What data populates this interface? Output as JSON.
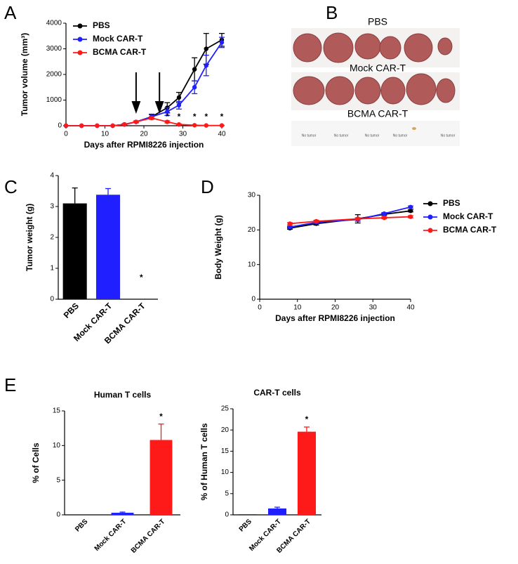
{
  "panel_labels": [
    "A",
    "B",
    "C",
    "D",
    "E"
  ],
  "photo": {
    "rows": [
      "PBS",
      "Mock CAR-T",
      "BCMA CAR-T"
    ],
    "no_tumor": [
      "No tumor",
      "No tumor",
      "No tumor",
      "No tumor",
      "No tumor"
    ]
  },
  "chart_data": [
    {
      "type": "line",
      "xlabel": "Days after RPMI8226 injection",
      "ylabel": "Tumor volume (mm³)",
      "x": [
        0,
        4,
        8,
        12,
        15,
        18,
        22,
        26,
        29,
        33,
        36,
        40
      ],
      "series": [
        {
          "name": "PBS",
          "color": "#000000",
          "values": [
            0,
            0,
            0,
            0,
            50,
            150,
            350,
            700,
            1100,
            2200,
            3000,
            3350
          ],
          "errors": [
            0,
            0,
            0,
            0,
            20,
            30,
            100,
            200,
            200,
            450,
            600,
            250
          ]
        },
        {
          "name": "Mock CAR-T",
          "color": "#1f1fff",
          "values": [
            0,
            0,
            0,
            0,
            50,
            150,
            350,
            550,
            800,
            1500,
            2350,
            3250
          ],
          "errors": [
            0,
            0,
            0,
            0,
            20,
            30,
            80,
            150,
            150,
            250,
            400,
            200
          ]
        },
        {
          "name": "BCMA CAR-T",
          "color": "#ff1a1a",
          "values": [
            0,
            0,
            0,
            0,
            50,
            150,
            300,
            150,
            50,
            20,
            10,
            10
          ],
          "errors": [
            0,
            0,
            0,
            0,
            20,
            30,
            50,
            40,
            20,
            10,
            5,
            5
          ]
        }
      ],
      "significance_labels": [
        null,
        null,
        null,
        null,
        null,
        null,
        null,
        "*",
        "*",
        "*",
        "*",
        "*"
      ],
      "arrow_x": [
        18,
        24
      ],
      "xlim": [
        0,
        40
      ],
      "xticks": [
        0,
        10,
        20,
        30,
        40
      ],
      "ylim": [
        0,
        4000
      ],
      "yticks": [
        0,
        1000,
        2000,
        3000,
        4000
      ],
      "legend": "upper left"
    },
    {
      "type": "bar",
      "ylabel": "Tumor weight (g)",
      "categories": [
        "PBS",
        "Mock CAR-T",
        "BCMA CAR-T"
      ],
      "values": [
        3.1,
        3.38,
        0
      ],
      "errors": [
        0.5,
        0.2,
        0
      ],
      "colors": [
        "#000000",
        "#1f1fff",
        "#ff1a1a"
      ],
      "significance_labels": [
        null,
        null,
        "*"
      ],
      "ylim": [
        0,
        4
      ],
      "yticks": [
        0,
        1,
        2,
        3,
        4
      ]
    },
    {
      "type": "line",
      "xlabel": "Days after RPMI8226 injection",
      "ylabel": "Body Weight (g)",
      "x": [
        8,
        15,
        26,
        33,
        40
      ],
      "series": [
        {
          "name": "PBS",
          "color": "#000000",
          "values": [
            20.5,
            21.8,
            23.2,
            24.5,
            25.5
          ],
          "errors": [
            0.3,
            0.4,
            1.2,
            0.3,
            0.3
          ]
        },
        {
          "name": "Mock CAR-T",
          "color": "#1f1fff",
          "values": [
            20.8,
            22.2,
            23.0,
            24.7,
            26.6
          ],
          "errors": [
            0.3,
            0.4,
            0.5,
            0.3,
            0.3
          ]
        },
        {
          "name": "BCMA CAR-T",
          "color": "#ff1a1a",
          "values": [
            21.8,
            22.5,
            23.2,
            23.5,
            23.8
          ],
          "errors": [
            0.3,
            0.3,
            0.3,
            0.3,
            0.3
          ]
        }
      ],
      "xlim": [
        0,
        40
      ],
      "xticks": [
        0,
        10,
        20,
        30,
        40
      ],
      "ylim": [
        0,
        30
      ],
      "yticks": [
        0,
        10,
        20,
        30
      ],
      "legend": "outside right"
    },
    {
      "type": "bar",
      "title": "Human T cells",
      "ylabel": "% of Cells",
      "categories": [
        "PBS",
        "Mock CAR-T",
        "BCMA CAR-T"
      ],
      "values": [
        0,
        0.3,
        10.8
      ],
      "errors": [
        0,
        0.1,
        2.3
      ],
      "colors": [
        "#000000",
        "#1f1fff",
        "#ff1a1a"
      ],
      "significance_labels": [
        null,
        null,
        "*"
      ],
      "ylim": [
        0,
        15
      ],
      "yticks": [
        0,
        5,
        10,
        15
      ]
    },
    {
      "type": "bar",
      "title": "CAR-T cells",
      "ylabel": "% of Human T cells",
      "categories": [
        "PBS",
        "Mock CAR-T",
        "BCMA CAR-T"
      ],
      "values": [
        0.1,
        1.5,
        19.6
      ],
      "errors": [
        0,
        0.3,
        1.1
      ],
      "colors": [
        "#000000",
        "#1f1fff",
        "#ff1a1a"
      ],
      "significance_labels": [
        null,
        null,
        "*"
      ],
      "ylim": [
        0,
        25
      ],
      "yticks": [
        0,
        5,
        10,
        15,
        20,
        25
      ]
    }
  ]
}
